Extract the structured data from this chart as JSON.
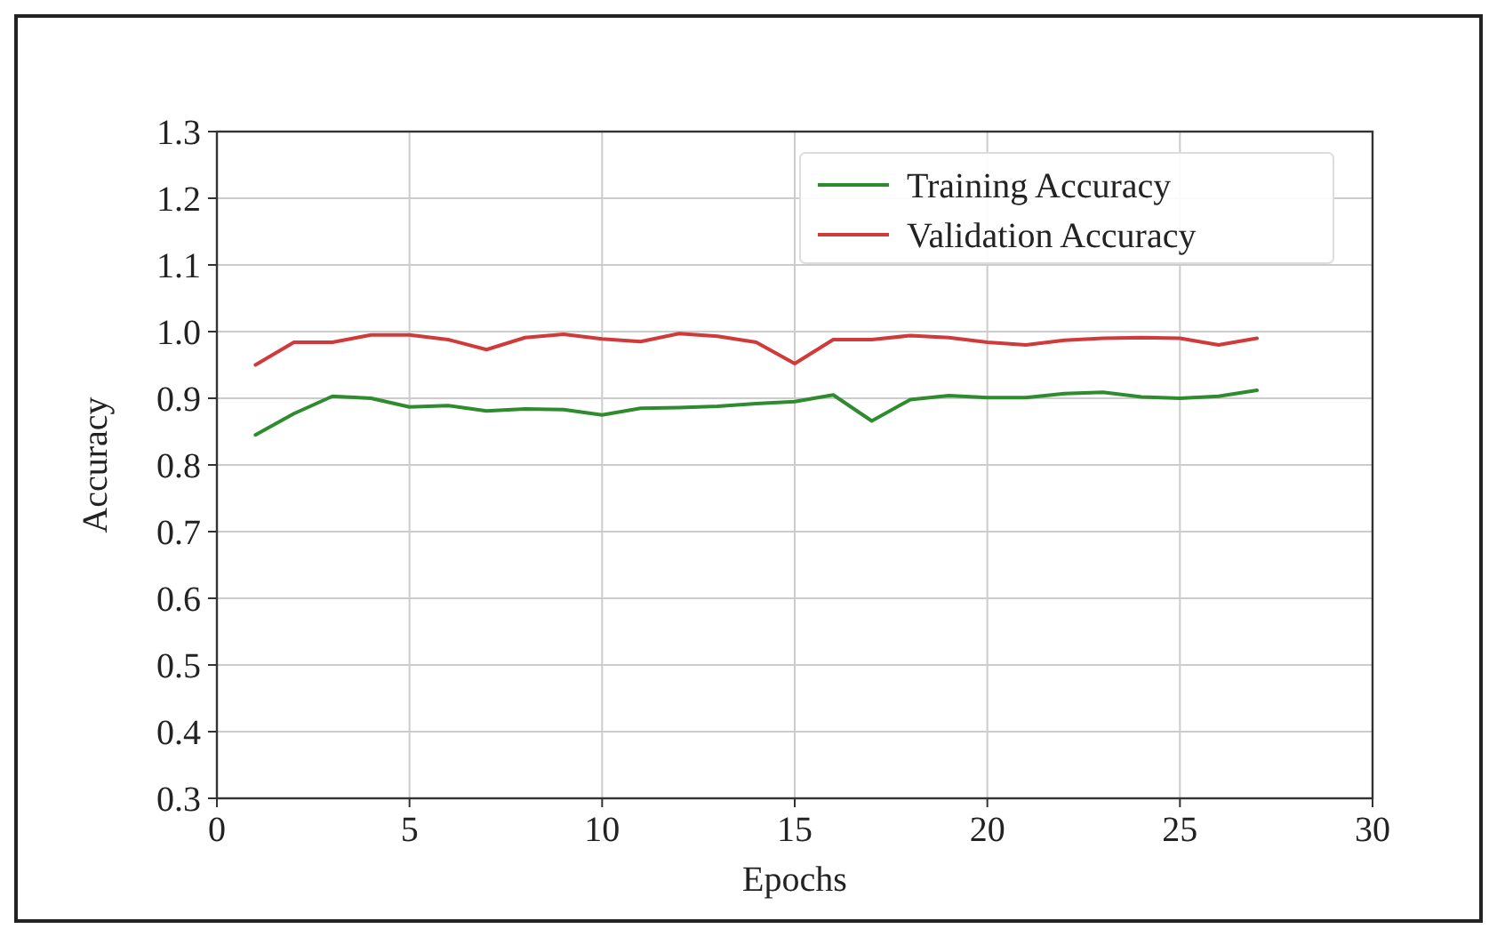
{
  "chart_data": {
    "type": "line",
    "xlabel": "Epochs",
    "ylabel": "Accuracy",
    "x": [
      1,
      2,
      3,
      4,
      5,
      6,
      7,
      8,
      9,
      10,
      11,
      12,
      13,
      14,
      15,
      16,
      17,
      18,
      19,
      20,
      21,
      22,
      23,
      24,
      25,
      26,
      27
    ],
    "series": [
      {
        "name": "Training Accuracy",
        "color": "#2e8b2e",
        "values": [
          0.845,
          0.877,
          0.903,
          0.9,
          0.887,
          0.889,
          0.881,
          0.884,
          0.883,
          0.875,
          0.885,
          0.886,
          0.888,
          0.892,
          0.895,
          0.905,
          0.866,
          0.898,
          0.904,
          0.901,
          0.901,
          0.907,
          0.909,
          0.902,
          0.9,
          0.903,
          0.912
        ]
      },
      {
        "name": "Validation Accuracy",
        "color": "#d03a3a",
        "values": [
          0.95,
          0.984,
          0.984,
          0.995,
          0.995,
          0.988,
          0.973,
          0.991,
          0.996,
          0.989,
          0.985,
          0.997,
          0.993,
          0.984,
          0.952,
          0.988,
          0.988,
          0.994,
          0.991,
          0.984,
          0.98,
          0.987,
          0.99,
          0.991,
          0.99,
          0.98,
          0.99
        ]
      }
    ],
    "xlim": [
      0,
      30
    ],
    "xticks": [
      0,
      5,
      10,
      15,
      20,
      25,
      30
    ],
    "ylim": [
      0.3,
      1.3
    ],
    "yticks": [
      {
        "value": 0.3,
        "label": "0.3"
      },
      {
        "value": 0.4,
        "label": "0.4"
      },
      {
        "value": 0.5,
        "label": "0.5"
      },
      {
        "value": 0.6,
        "label": "0.6"
      },
      {
        "value": 0.7,
        "label": "0.7"
      },
      {
        "value": 0.8,
        "label": "0.8"
      },
      {
        "value": 0.9,
        "label": "0.9"
      },
      {
        "value": 1.0,
        "label": "1.0"
      },
      {
        "value": 1.1,
        "label": "1.1"
      },
      {
        "value": 1.2,
        "label": "1.2"
      },
      {
        "value": 1.3,
        "label": "1.3"
      }
    ],
    "grid": true,
    "legend": "top right",
    "marker": "none",
    "line_style": "solid"
  }
}
